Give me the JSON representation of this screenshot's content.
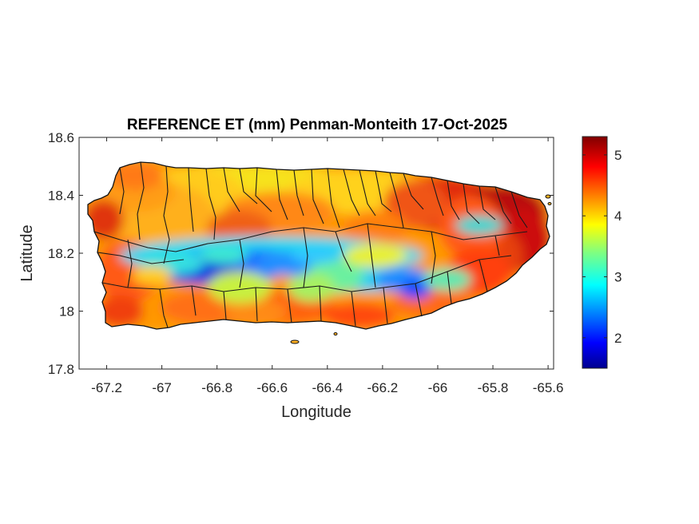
{
  "chart_data": {
    "type": "heatmap",
    "title": "REFERENCE ET (mm) Penman-Monteith 17-Oct-2025",
    "xlabel": "Longitude",
    "ylabel": "Latitude",
    "xlim": [
      -67.3,
      -65.58
    ],
    "ylim": [
      17.8,
      18.6
    ],
    "xticks": [
      -67.2,
      -67,
      -66.8,
      -66.6,
      -66.4,
      -66.2,
      -66,
      -65.8,
      -65.6
    ],
    "xtick_labels": [
      "-67.2",
      "-67",
      "-66.8",
      "-66.6",
      "-66.4",
      "-66.2",
      "-66",
      "-65.8",
      "-65.6"
    ],
    "yticks": [
      17.8,
      18,
      18.2,
      18.4,
      18.6
    ],
    "ytick_labels": [
      "17.8",
      "18",
      "18.2",
      "18.4",
      "18.6"
    ],
    "colorbar": {
      "colormap": "jet",
      "clim": [
        1.5,
        5.3
      ],
      "ticks": [
        2,
        3,
        4,
        5
      ],
      "tick_labels": [
        "2",
        "3",
        "4",
        "5"
      ]
    },
    "region": "Puerto Rico",
    "pattern": "Lowest values (about 1.5-3 mm) along the central mountain ridge from -66.95 to -66.1 longitude near 18.13-18.17 latitude; highest values (about 5 mm) on the northeast and east coasts and the southwest/west coasts; about 4 mm over most of the north-central interior.",
    "grid": false
  }
}
